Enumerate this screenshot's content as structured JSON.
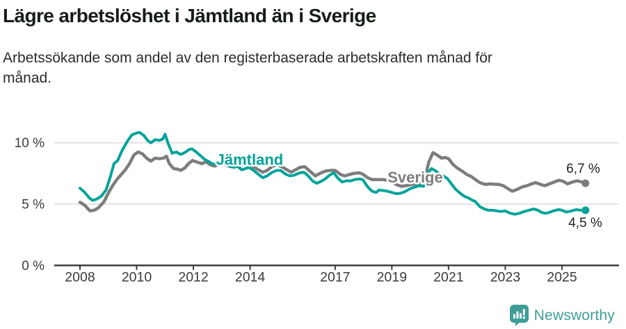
{
  "header": {
    "title": "Lägre arbetslöshet i Jämtland än i Sverige",
    "subtitle_lines": [
      "Arbetssökande som andel av den registerbaserade arbetskraften månad för",
      "månad."
    ]
  },
  "footer": {
    "brand": "Newsworthy",
    "logo_icon": "speech-bubble-bar-chart-exclamation"
  },
  "colors": {
    "jamtland": "#00a39a",
    "sverige": "#7d7d7d",
    "grid": "#dcdcdc",
    "axis": "#3d3d3d",
    "tick_text": "#3a3a3a",
    "value_text": "#222222",
    "brand_teal": "#3e9d98",
    "background": "#ffffff"
  },
  "chart_data": {
    "type": "line",
    "unit": "%",
    "x_axis": {
      "range": [
        2007.1,
        2027.0
      ],
      "tick_years": [
        2008,
        2010,
        2012,
        2014,
        2017,
        2019,
        2021,
        2023,
        2025
      ],
      "tick_labels": [
        "2008",
        "2010",
        "2012",
        "2014",
        "2017",
        "2019",
        "2021",
        "2023",
        "2025"
      ]
    },
    "y_axis": {
      "range": [
        0,
        12.6
      ],
      "tick_values": [
        0,
        5,
        10
      ],
      "tick_labels": [
        "0 %",
        "5 %",
        "10 %"
      ],
      "gridlines": [
        5,
        10
      ]
    },
    "series": [
      {
        "name": "Sverige",
        "color_key": "sverige",
        "stroke_width": 4.5,
        "end_label": "6,7 %",
        "end_value": 6.7,
        "label_at": [
          2018.85,
          6.76
        ],
        "end_label_offset": [
          21,
          -15
        ],
        "points": [
          [
            2008.0,
            5.15
          ],
          [
            2008.17,
            4.9
          ],
          [
            2008.35,
            4.45
          ],
          [
            2008.5,
            4.5
          ],
          [
            2008.65,
            4.7
          ],
          [
            2008.85,
            5.2
          ],
          [
            2009.0,
            5.9
          ],
          [
            2009.15,
            6.5
          ],
          [
            2009.3,
            7.0
          ],
          [
            2009.45,
            7.4
          ],
          [
            2009.6,
            7.8
          ],
          [
            2009.75,
            8.3
          ],
          [
            2009.9,
            9.0
          ],
          [
            2010.05,
            9.25
          ],
          [
            2010.2,
            9.1
          ],
          [
            2010.35,
            8.75
          ],
          [
            2010.5,
            8.5
          ],
          [
            2010.65,
            8.75
          ],
          [
            2010.8,
            8.7
          ],
          [
            2010.95,
            8.75
          ],
          [
            2011.05,
            8.9
          ],
          [
            2011.15,
            8.3
          ],
          [
            2011.3,
            7.9
          ],
          [
            2011.45,
            7.85
          ],
          [
            2011.55,
            7.75
          ],
          [
            2011.7,
            7.95
          ],
          [
            2011.85,
            8.35
          ],
          [
            2011.97,
            8.55
          ],
          [
            2012.1,
            8.45
          ],
          [
            2012.3,
            8.3
          ],
          [
            2012.45,
            8.45
          ],
          [
            2012.6,
            8.2
          ],
          [
            2012.75,
            8.1
          ],
          [
            2012.9,
            8.25
          ],
          [
            2013.05,
            8.3
          ],
          [
            2013.25,
            8.1
          ],
          [
            2013.45,
            8.05
          ],
          [
            2013.6,
            8.1
          ],
          [
            2013.75,
            8.2
          ],
          [
            2013.93,
            8.3
          ],
          [
            2014.1,
            8.1
          ],
          [
            2014.25,
            7.85
          ],
          [
            2014.45,
            7.6
          ],
          [
            2014.6,
            7.75
          ],
          [
            2014.8,
            8.1
          ],
          [
            2014.97,
            8.2
          ],
          [
            2015.15,
            8.0
          ],
          [
            2015.3,
            7.8
          ],
          [
            2015.45,
            7.6
          ],
          [
            2015.6,
            7.8
          ],
          [
            2015.77,
            8.0
          ],
          [
            2015.93,
            8.05
          ],
          [
            2016.1,
            7.7
          ],
          [
            2016.3,
            7.3
          ],
          [
            2016.5,
            7.55
          ],
          [
            2016.67,
            7.7
          ],
          [
            2016.85,
            7.75
          ],
          [
            2017.0,
            7.75
          ],
          [
            2017.2,
            7.4
          ],
          [
            2017.33,
            7.3
          ],
          [
            2017.5,
            7.4
          ],
          [
            2017.65,
            7.5
          ],
          [
            2017.85,
            7.55
          ],
          [
            2017.97,
            7.45
          ],
          [
            2018.15,
            7.15
          ],
          [
            2018.3,
            7.0
          ],
          [
            2018.5,
            7.0
          ],
          [
            2018.67,
            7.0
          ],
          [
            2018.85,
            6.95
          ],
          [
            2019.0,
            6.8
          ],
          [
            2019.2,
            6.55
          ],
          [
            2019.35,
            6.45
          ],
          [
            2019.5,
            6.5
          ],
          [
            2019.7,
            6.6
          ],
          [
            2019.85,
            6.65
          ],
          [
            2020.0,
            6.7
          ],
          [
            2020.15,
            6.9
          ],
          [
            2020.3,
            8.4
          ],
          [
            2020.45,
            9.2
          ],
          [
            2020.6,
            9.0
          ],
          [
            2020.75,
            8.75
          ],
          [
            2020.88,
            8.8
          ],
          [
            2021.0,
            8.7
          ],
          [
            2021.15,
            8.25
          ],
          [
            2021.3,
            7.95
          ],
          [
            2021.5,
            7.65
          ],
          [
            2021.65,
            7.4
          ],
          [
            2021.8,
            7.25
          ],
          [
            2021.95,
            7.0
          ],
          [
            2022.1,
            6.75
          ],
          [
            2022.3,
            6.6
          ],
          [
            2022.45,
            6.65
          ],
          [
            2022.6,
            6.62
          ],
          [
            2022.78,
            6.6
          ],
          [
            2022.93,
            6.5
          ],
          [
            2023.1,
            6.25
          ],
          [
            2023.25,
            6.05
          ],
          [
            2023.42,
            6.2
          ],
          [
            2023.6,
            6.4
          ],
          [
            2023.77,
            6.5
          ],
          [
            2023.93,
            6.65
          ],
          [
            2024.07,
            6.75
          ],
          [
            2024.25,
            6.6
          ],
          [
            2024.4,
            6.5
          ],
          [
            2024.56,
            6.65
          ],
          [
            2024.73,
            6.8
          ],
          [
            2024.9,
            6.95
          ],
          [
            2025.05,
            6.85
          ],
          [
            2025.2,
            6.65
          ],
          [
            2025.37,
            6.8
          ],
          [
            2025.53,
            6.9
          ],
          [
            2025.7,
            6.8
          ],
          [
            2025.83,
            6.7
          ]
        ]
      },
      {
        "name": "Jämtland",
        "color_key": "jamtland",
        "stroke_width": 4,
        "end_label": "4,5 %",
        "end_value": 4.5,
        "label_at": [
          2012.8,
          8.2
        ],
        "end_label_offset": [
          24,
          24
        ],
        "points": [
          [
            2008.0,
            6.3
          ],
          [
            2008.17,
            5.95
          ],
          [
            2008.33,
            5.5
          ],
          [
            2008.45,
            5.3
          ],
          [
            2008.58,
            5.4
          ],
          [
            2008.75,
            5.65
          ],
          [
            2008.92,
            6.15
          ],
          [
            2009.08,
            7.3
          ],
          [
            2009.2,
            8.3
          ],
          [
            2009.33,
            8.55
          ],
          [
            2009.47,
            9.3
          ],
          [
            2009.65,
            10.05
          ],
          [
            2009.83,
            10.65
          ],
          [
            2010.0,
            10.8
          ],
          [
            2010.1,
            10.85
          ],
          [
            2010.25,
            10.6
          ],
          [
            2010.4,
            10.15
          ],
          [
            2010.5,
            10.0
          ],
          [
            2010.65,
            10.25
          ],
          [
            2010.8,
            10.2
          ],
          [
            2010.92,
            10.3
          ],
          [
            2011.0,
            10.7
          ],
          [
            2011.1,
            10.0
          ],
          [
            2011.25,
            9.15
          ],
          [
            2011.4,
            9.25
          ],
          [
            2011.55,
            9.05
          ],
          [
            2011.7,
            9.2
          ],
          [
            2011.85,
            9.45
          ],
          [
            2011.95,
            9.5
          ],
          [
            2012.1,
            9.25
          ],
          [
            2012.25,
            8.95
          ],
          [
            2012.4,
            8.65
          ],
          [
            2012.55,
            8.45
          ],
          [
            2012.7,
            8.25
          ],
          [
            2012.85,
            8.3
          ],
          [
            2013.0,
            8.45
          ],
          [
            2013.15,
            8.25
          ],
          [
            2013.3,
            8.05
          ],
          [
            2013.45,
            8.0
          ],
          [
            2013.55,
            8.1
          ],
          [
            2013.7,
            7.8
          ],
          [
            2013.85,
            7.9
          ],
          [
            2013.95,
            8.0
          ],
          [
            2014.1,
            7.8
          ],
          [
            2014.25,
            7.5
          ],
          [
            2014.45,
            7.15
          ],
          [
            2014.6,
            7.3
          ],
          [
            2014.75,
            7.55
          ],
          [
            2014.93,
            7.75
          ],
          [
            2015.07,
            7.75
          ],
          [
            2015.25,
            7.45
          ],
          [
            2015.4,
            7.3
          ],
          [
            2015.55,
            7.35
          ],
          [
            2015.75,
            7.55
          ],
          [
            2015.9,
            7.6
          ],
          [
            2016.05,
            7.3
          ],
          [
            2016.2,
            6.9
          ],
          [
            2016.35,
            6.7
          ],
          [
            2016.5,
            6.85
          ],
          [
            2016.65,
            7.05
          ],
          [
            2016.8,
            7.35
          ],
          [
            2016.95,
            7.55
          ],
          [
            2017.1,
            7.1
          ],
          [
            2017.25,
            6.8
          ],
          [
            2017.4,
            6.9
          ],
          [
            2017.55,
            6.9
          ],
          [
            2017.7,
            7.0
          ],
          [
            2017.85,
            7.05
          ],
          [
            2017.97,
            7.0
          ],
          [
            2018.15,
            6.4
          ],
          [
            2018.3,
            6.05
          ],
          [
            2018.45,
            5.95
          ],
          [
            2018.55,
            6.15
          ],
          [
            2018.7,
            6.1
          ],
          [
            2018.85,
            6.05
          ],
          [
            2019.0,
            5.95
          ],
          [
            2019.15,
            5.85
          ],
          [
            2019.3,
            5.88
          ],
          [
            2019.45,
            6.0
          ],
          [
            2019.6,
            6.2
          ],
          [
            2019.75,
            6.35
          ],
          [
            2019.9,
            6.45
          ],
          [
            2020.0,
            6.5
          ],
          [
            2020.1,
            6.45
          ],
          [
            2020.2,
            6.6
          ],
          [
            2020.3,
            7.6
          ],
          [
            2020.4,
            7.9
          ],
          [
            2020.55,
            7.7
          ],
          [
            2020.7,
            7.4
          ],
          [
            2020.85,
            7.25
          ],
          [
            2020.95,
            7.1
          ],
          [
            2021.1,
            6.65
          ],
          [
            2021.25,
            6.2
          ],
          [
            2021.4,
            5.9
          ],
          [
            2021.55,
            5.65
          ],
          [
            2021.7,
            5.5
          ],
          [
            2021.85,
            5.3
          ],
          [
            2021.95,
            5.2
          ],
          [
            2022.1,
            4.8
          ],
          [
            2022.25,
            4.62
          ],
          [
            2022.4,
            4.5
          ],
          [
            2022.55,
            4.5
          ],
          [
            2022.7,
            4.45
          ],
          [
            2022.85,
            4.4
          ],
          [
            2023.0,
            4.45
          ],
          [
            2023.15,
            4.28
          ],
          [
            2023.33,
            4.17
          ],
          [
            2023.5,
            4.25
          ],
          [
            2023.65,
            4.38
          ],
          [
            2023.83,
            4.5
          ],
          [
            2024.0,
            4.6
          ],
          [
            2024.15,
            4.5
          ],
          [
            2024.3,
            4.3
          ],
          [
            2024.42,
            4.25
          ],
          [
            2024.55,
            4.32
          ],
          [
            2024.7,
            4.45
          ],
          [
            2024.88,
            4.55
          ],
          [
            2025.0,
            4.5
          ],
          [
            2025.15,
            4.35
          ],
          [
            2025.3,
            4.42
          ],
          [
            2025.5,
            4.55
          ],
          [
            2025.65,
            4.5
          ],
          [
            2025.83,
            4.5
          ]
        ]
      }
    ]
  }
}
